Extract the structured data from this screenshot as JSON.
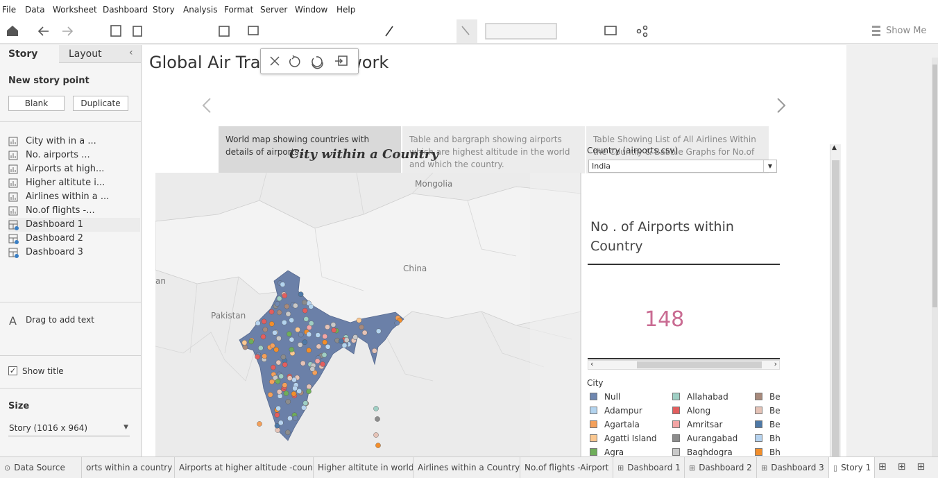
{
  "menu": [
    "File",
    "Data",
    "Worksheet",
    "Dashboard",
    "Story",
    "Analysis",
    "Format",
    "Server",
    "Window",
    "Help"
  ],
  "toolbar": {
    "show_me": "Show Me"
  },
  "side_panel": {
    "tabs": [
      "Story",
      "Layout"
    ],
    "new_story_point": "New story point",
    "buttons": [
      "Blank",
      "Duplicate"
    ],
    "sheets": [
      {
        "label": "City with in a ...",
        "kind": "sheet"
      },
      {
        "label": "No. airports ...",
        "kind": "sheet"
      },
      {
        "label": "Airports at high...",
        "kind": "sheet"
      },
      {
        "label": "Higher altitute i...",
        "kind": "sheet"
      },
      {
        "label": "Airlines within a ...",
        "kind": "sheet"
      },
      {
        "label": "No.of flights -...",
        "kind": "sheet"
      },
      {
        "label": "Dashboard 1",
        "kind": "dashboard"
      },
      {
        "label": "Dashboard 2",
        "kind": "dashboard"
      },
      {
        "label": "Dashboard 3",
        "kind": "dashboard"
      }
    ],
    "drag_text": "Drag to add text",
    "show_title": "Show title",
    "size_label": "Size",
    "size_value": "Story (1016 x 964)"
  },
  "story": {
    "title": "Global Air Transport Network",
    "points": [
      "World map showing countries with details of airports .",
      "Table and bargraph showing airports which are  highest altitude in the world and which the country.",
      "Table Showing List of All Airlines Within the Country & Babble Graphs for No.of Flights From Airports."
    ]
  },
  "dashboard": {
    "title": "City within  a Country",
    "map_labels": [
      "Mongolia",
      "China",
      "Pakistan",
      "an"
    ],
    "filter": {
      "label": "Country (airports.csv)",
      "value": "India"
    },
    "kpi": {
      "title": "No . of Airports within Country",
      "value": 148
    },
    "legend": {
      "title": "City",
      "items": [
        {
          "label": "Null",
          "color": "#6f87b0"
        },
        {
          "label": "Adampur",
          "color": "#b3d4ef"
        },
        {
          "label": "Agartala",
          "color": "#f4a05a"
        },
        {
          "label": "Agatti Island",
          "color": "#fbc891"
        },
        {
          "label": "Agra",
          "color": "#6fae5a"
        },
        {
          "label": "Allahabad",
          "color": "#9fcfc4"
        },
        {
          "label": "Along",
          "color": "#e35e5e"
        },
        {
          "label": "Amritsar",
          "color": "#f4a5a5"
        },
        {
          "label": "Aurangabad",
          "color": "#8c8c8c"
        },
        {
          "label": "Baghdogra",
          "color": "#c8c8c8"
        },
        {
          "label": "Be",
          "color": "#a88a7c"
        },
        {
          "label": "Be",
          "color": "#e5c3b7"
        },
        {
          "label": "Be",
          "color": "#4e79a7"
        },
        {
          "label": "Bh",
          "color": "#b6d3ef"
        },
        {
          "label": "Bh",
          "color": "#f28e2b"
        }
      ]
    }
  },
  "tabs": [
    {
      "label": "Data Source",
      "kind": "source"
    },
    {
      "label": "orts within a country",
      "kind": "sheet"
    },
    {
      "label": "Airports at higher altitude -coun...",
      "kind": "sheet"
    },
    {
      "label": "Higher altitute in world",
      "kind": "sheet"
    },
    {
      "label": "Airlines within a Country",
      "kind": "sheet"
    },
    {
      "label": "No.of flights -Airport",
      "kind": "sheet"
    },
    {
      "label": "Dashboard 1",
      "kind": "dashboard"
    },
    {
      "label": "Dashboard 2",
      "kind": "dashboard"
    },
    {
      "label": "Dashboard 3",
      "kind": "dashboard"
    },
    {
      "label": "Story 1",
      "kind": "story"
    }
  ]
}
